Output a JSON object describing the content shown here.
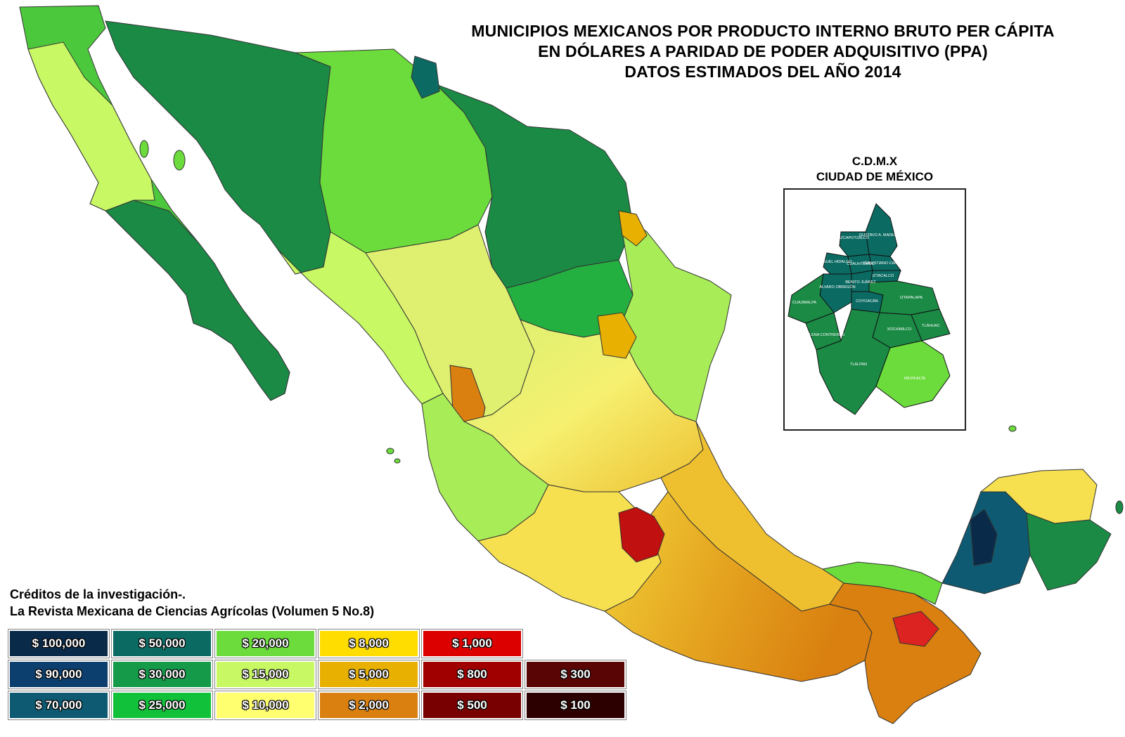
{
  "title": {
    "line1": "MUNICIPIOS MEXICANOS POR PRODUCTO INTERNO BRUTO PER CÁPITA",
    "line2": "EN DÓLARES A PARIDAD DE PODER ADQUISITIVO (PPA)",
    "line3": "DATOS ESTIMADOS DEL AÑO 2014"
  },
  "inset": {
    "title1": "C.D.M.X",
    "title2": "CIUDAD DE MÉXICO",
    "labels": [
      "AZCAPOTZALCO",
      "GUSTAVO A. MADERO",
      "MIGUEL HIDALGO",
      "CUAUHTÉMOC",
      "VENUSTIANO CARRANZA",
      "IZTACALCO",
      "BENITO JUÁREZ",
      "ÁLVARO OBREGÓN",
      "CUAJIMALPA",
      "COYOACÁN",
      "IZTAPALAPA",
      "TLÁHUAC",
      "MAGDALENA CONTRERAS",
      "XOCHIMILCO",
      "TLALPAN",
      "MILPA ALTA"
    ]
  },
  "credits": {
    "line1": "Créditos de la investigación-.",
    "line2": "La Revista Mexicana de Ciencias Agrícolas (Volumen 5 No.8)"
  },
  "legend": [
    {
      "label": "$ 100,000",
      "color": "#0a2a4a"
    },
    {
      "label": "$ 50,000",
      "color": "#0b6b63"
    },
    {
      "label": "$ 20,000",
      "color": "#6cdc3c"
    },
    {
      "label": "$ 8,000",
      "color": "#ffdd00"
    },
    {
      "label": "$ 1,000",
      "color": "#dd0000"
    },
    {
      "label": "$ 90,000",
      "color": "#0d3f6e"
    },
    {
      "label": "$ 30,000",
      "color": "#159a4a"
    },
    {
      "label": "$ 15,000",
      "color": "#c8f864"
    },
    {
      "label": "$ 5,000",
      "color": "#e8b000"
    },
    {
      "label": "$ 800",
      "color": "#a00000"
    },
    {
      "label": "$ 300",
      "color": "#5a0505"
    },
    {
      "label": "$ 70,000",
      "color": "#0d5a72"
    },
    {
      "label": "$ 25,000",
      "color": "#12c13a"
    },
    {
      "label": "$ 10,000",
      "color": "#ffff70"
    },
    {
      "label": "$ 2,000",
      "color": "#d98010"
    },
    {
      "label": "$ 500",
      "color": "#780000"
    },
    {
      "label": "$ 100",
      "color": "#2d0000"
    }
  ]
}
